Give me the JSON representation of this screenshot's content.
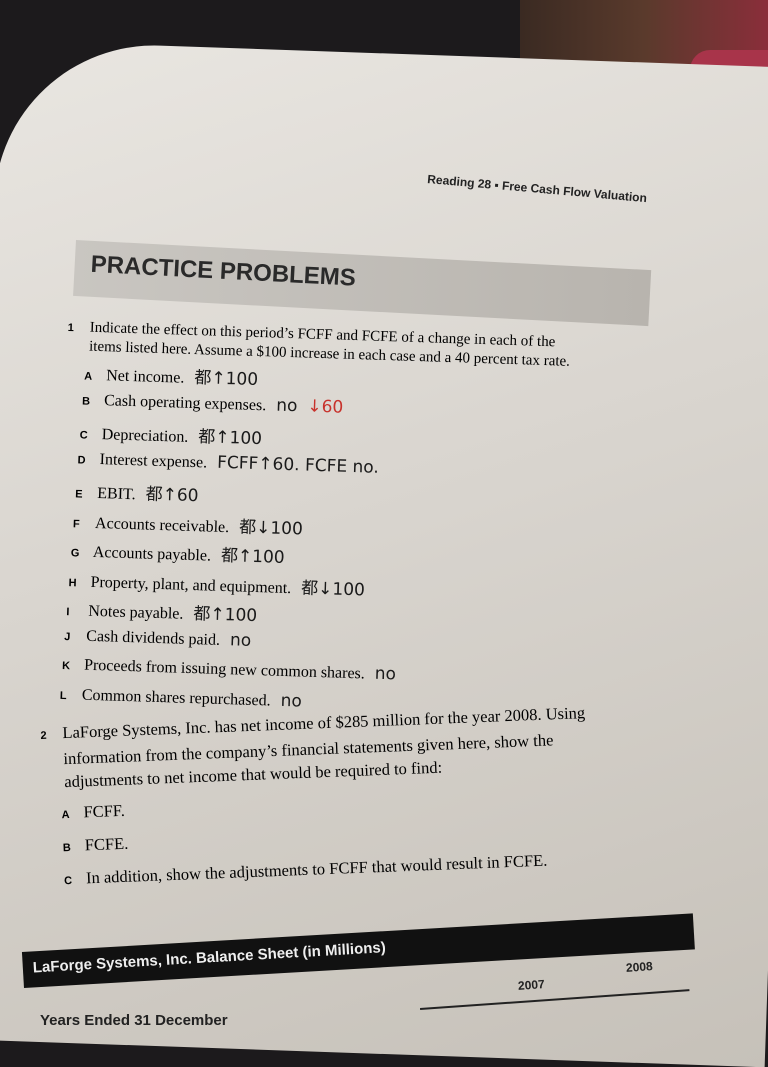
{
  "running_head": "Reading 28 ▪ Free Cash Flow Valuation",
  "section_title": "PRACTICE PROBLEMS",
  "problem1": {
    "number": "1",
    "prompt_line1": "Indicate the effect on this period’s FCFF and FCFE of a change in each of the",
    "prompt_line2": "items listed here. Assume a $100 increase in each case and a 40 percent tax rate.",
    "items": [
      {
        "letter": "A",
        "text": "Net income.",
        "note": "都↑100",
        "note_red": ""
      },
      {
        "letter": "B",
        "text": "Cash operating expenses.",
        "note": "no",
        "note_red": "↓60"
      },
      {
        "letter": "C",
        "text": "Depreciation.",
        "note": "都↑100",
        "note_red": ""
      },
      {
        "letter": "D",
        "text": "Interest expense.",
        "note": "FCFF↑60. FCFE no.",
        "note_red": ""
      },
      {
        "letter": "E",
        "text": "EBIT.",
        "note": "都↑60",
        "note_red": ""
      },
      {
        "letter": "F",
        "text": "Accounts receivable.",
        "note": "都↓100",
        "note_red": ""
      },
      {
        "letter": "G",
        "text": "Accounts payable.",
        "note": "都↑100",
        "note_red": ""
      },
      {
        "letter": "H",
        "text": "Property, plant, and equipment.",
        "note": "都↓100",
        "note_red": ""
      },
      {
        "letter": "I",
        "text": "Notes payable.",
        "note": "都↑100",
        "note_red": ""
      },
      {
        "letter": "J",
        "text": "Cash dividends paid.",
        "note": "no",
        "note_red": ""
      },
      {
        "letter": "K",
        "text": "Proceeds from issuing new common shares.",
        "note": "no",
        "note_red": ""
      },
      {
        "letter": "L",
        "text": "Common shares repurchased.",
        "note": "no",
        "note_red": ""
      }
    ]
  },
  "problem2": {
    "number": "2",
    "prompt_line1": "LaForge Systems, Inc. has net income of $285 million for the year 2008. Using",
    "prompt_line2": "information from the company’s financial statements given here, show the",
    "prompt_line3": "adjustments to net income that would be required to find:",
    "items": [
      {
        "letter": "A",
        "text": "FCFF."
      },
      {
        "letter": "B",
        "text": "FCFE."
      },
      {
        "letter": "C",
        "text": "In addition, show the adjustments to FCFF that would result in FCFE."
      }
    ]
  },
  "table": {
    "title": "LaForge Systems, Inc. Balance Sheet (in Millions)",
    "col_2007": "2007",
    "col_2008": "2008",
    "row_label": "Years Ended 31 December"
  }
}
